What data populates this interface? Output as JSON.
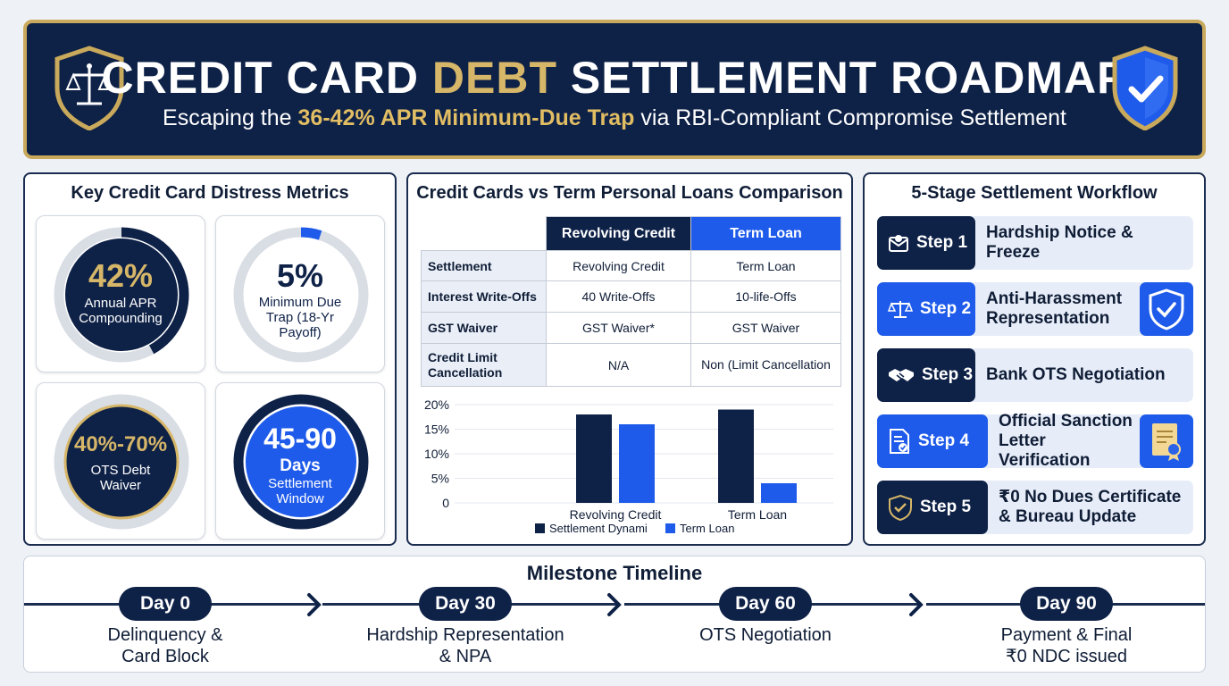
{
  "header": {
    "title_pre": "CREDIT CARD",
    "title_accent": "DEBT",
    "title_post": "SETTLEMENT ROADMAP",
    "subtitle_pre": "Escaping the",
    "subtitle_accent": "36-42% APR Minimum-Due Trap",
    "subtitle_post": "via RBI-Compliant Compromise Settlement"
  },
  "metrics": {
    "title": "Key Credit Card Distress Metrics",
    "cards": [
      {
        "value": "42%",
        "line1": "Annual APR",
        "line2": "Compounding",
        "line3": "",
        "ring_fraction": 0.42
      },
      {
        "value": "5%",
        "line1": "Minimum Due",
        "line2": "Trap (18-Yr",
        "line3": "Payoff)",
        "ring_fraction": 0.05
      },
      {
        "value": "40%-70%",
        "line1": "OTS Debt",
        "line2": "Waiver",
        "line3": ""
      },
      {
        "value": "45-90",
        "line1": "Days",
        "line2": "Settlement",
        "line3": "Window"
      }
    ]
  },
  "comparison": {
    "title": "Credit Cards vs Term Personal Loans Comparison",
    "columns": [
      "Revolving Credit",
      "Term Loan"
    ],
    "rows": [
      {
        "label": "Settlement",
        "revolving": "Revolving Credit",
        "term": "Term Loan"
      },
      {
        "label": "Interest Write-Offs",
        "revolving": "40 Write-Offs",
        "term": "10-life-Offs"
      },
      {
        "label": "GST Waiver",
        "revolving": "GST Waiver*",
        "term": "GST Waiver"
      },
      {
        "label": "Credit Limit Cancellation",
        "revolving": "N/A",
        "term": "Non (Limit Cancellation"
      }
    ]
  },
  "chart_data": {
    "type": "bar",
    "categories": [
      "Revolving Credit",
      "Term Loan"
    ],
    "series": [
      {
        "name": "Settlement Dynami",
        "values": [
          18,
          19
        ],
        "color": "#0e2147"
      },
      {
        "name": "Term Loan",
        "values": [
          16,
          4
        ],
        "color": "#1f5bea"
      }
    ],
    "ylim": [
      0,
      20
    ],
    "yticks": [
      "0",
      "5%",
      "10%",
      "15%",
      "20%"
    ],
    "ytick_values": [
      0,
      5,
      10,
      15,
      20
    ],
    "grid": true,
    "legend": "bottom"
  },
  "workflow": {
    "title": "5-Stage Settlement Workflow",
    "steps": [
      {
        "badge": "Step 1",
        "label": "Hardship Notice & Freeze",
        "icon": "envelope-icon",
        "style": "dark"
      },
      {
        "badge": "Step 2",
        "label": "Anti-Harassment Representation",
        "icon": "scales-icon",
        "style": "blue",
        "side_icon": "shield-check-icon"
      },
      {
        "badge": "Step 3",
        "label": "Bank OTS Negotiation",
        "icon": "handshake-icon",
        "style": "dark"
      },
      {
        "badge": "Step 4",
        "label": "Official Sanction Letter Verification",
        "icon": "document-check-icon",
        "style": "blue",
        "side_icon": "certificate-icon"
      },
      {
        "badge": "Step 5",
        "label": "₹0 No Dues Certificate & Bureau Update",
        "icon": "shield-check-icon",
        "style": "dark"
      }
    ]
  },
  "timeline": {
    "title": "Milestone Timeline",
    "milestones": [
      {
        "day": "Day 0",
        "line1": "Delinquency &",
        "line2": "Card Block"
      },
      {
        "day": "Day 30",
        "line1": "Hardship Representation",
        "line2": "& NPA"
      },
      {
        "day": "Day 60",
        "line1": "OTS Negotiation",
        "line2": ""
      },
      {
        "day": "Day 90",
        "line1": "Payment & Final",
        "line2": "₹0 NDC issued"
      }
    ]
  },
  "colors": {
    "navy": "#0e2147",
    "gold": "#d6b668",
    "blue": "#1f5bea",
    "grey_track": "#d9dde4",
    "step_bg": "#e7edf8"
  }
}
